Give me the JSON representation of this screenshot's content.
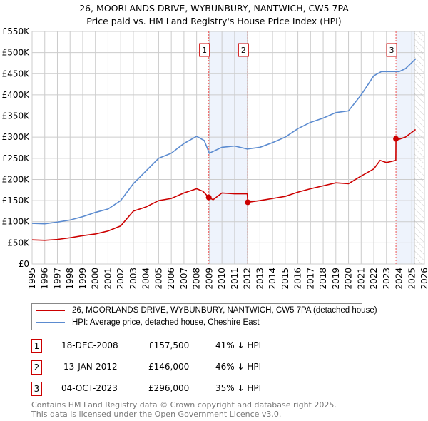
{
  "title": "26, MOORLANDS DRIVE, WYBUNBURY, NANTWICH, CW5 7PA",
  "subtitle": "Price paid vs. HM Land Registry's House Price Index (HPI)",
  "colors": {
    "property": "#cc0000",
    "hpi": "#5b8bd0",
    "shade": "#eef3fc"
  },
  "chart_data": {
    "type": "line",
    "xlim": [
      1995,
      2026
    ],
    "ylim": [
      0,
      550000
    ],
    "x_ticks": [
      "1995",
      "1996",
      "1997",
      "1998",
      "1999",
      "2000",
      "2001",
      "2002",
      "2003",
      "2004",
      "2005",
      "2006",
      "2007",
      "2008",
      "2009",
      "2010",
      "2011",
      "2012",
      "2013",
      "2014",
      "2015",
      "2016",
      "2017",
      "2018",
      "2019",
      "2020",
      "2021",
      "2022",
      "2023",
      "2024",
      "2025",
      "2026"
    ],
    "y_ticks": [
      "£0",
      "£50K",
      "£100K",
      "£150K",
      "£200K",
      "£250K",
      "£300K",
      "£350K",
      "£400K",
      "£450K",
      "£500K",
      "£550K"
    ],
    "series": [
      {
        "name": "26, MOORLANDS DRIVE, WYBUNBURY, NANTWICH, CW5 7PA (detached house)",
        "color": "#cc0000",
        "x": [
          1995,
          1996,
          1997,
          1998,
          1999,
          2000,
          2001,
          2002,
          2003,
          2004,
          2005,
          2006,
          2007,
          2008,
          2008.5,
          2008.96,
          2009.3,
          2010,
          2011,
          2012.0,
          2012.04,
          2013,
          2014,
          2015,
          2016,
          2017,
          2018,
          2019,
          2020,
          2021,
          2022,
          2022.5,
          2023,
          2023.74,
          2023.75,
          2024,
          2024.5,
          2025.3
        ],
        "y": [
          57000,
          56000,
          58000,
          62000,
          67000,
          71000,
          78000,
          90000,
          125000,
          135000,
          150000,
          155000,
          168000,
          178000,
          172000,
          157500,
          152000,
          168000,
          166000,
          166000,
          146000,
          150000,
          155000,
          160000,
          170000,
          178000,
          185000,
          192000,
          190000,
          208000,
          225000,
          245000,
          240000,
          245000,
          296000,
          295000,
          300000,
          318000
        ]
      },
      {
        "name": "HPI: Average price, detached house, Cheshire East",
        "color": "#5b8bd0",
        "x": [
          1995,
          1996,
          1997,
          1998,
          1999,
          2000,
          2001,
          2002,
          2003,
          2004,
          2005,
          2006,
          2007,
          2008,
          2008.6,
          2009,
          2010,
          2011,
          2012,
          2013,
          2014,
          2015,
          2016,
          2017,
          2018,
          2019,
          2020,
          2021,
          2022,
          2022.6,
          2023,
          2024,
          2024.5,
          2025.3
        ],
        "y": [
          96000,
          95000,
          99000,
          104000,
          112000,
          122000,
          130000,
          150000,
          190000,
          220000,
          250000,
          262000,
          285000,
          302000,
          292000,
          262000,
          276000,
          279000,
          272000,
          276000,
          287000,
          300000,
          320000,
          335000,
          345000,
          358000,
          362000,
          400000,
          445000,
          455000,
          455000,
          455000,
          462000,
          485000
        ]
      }
    ],
    "sales": [
      {
        "label": "1",
        "x": 2008.96,
        "y": 157500
      },
      {
        "label": "2",
        "x": 2012.04,
        "y": 146000
      },
      {
        "label": "3",
        "x": 2023.75,
        "y": 296000
      }
    ],
    "shaded": [
      [
        2008.96,
        2012.04
      ],
      [
        2023.75,
        2025.2
      ]
    ],
    "forecast_from": 2025.2,
    "grid": true,
    "legend": "bottom"
  },
  "legend": [
    "26, MOORLANDS DRIVE, WYBUNBURY, NANTWICH, CW5 7PA (detached house)",
    "HPI: Average price, detached house, Cheshire East"
  ],
  "transactions": [
    {
      "num": "1",
      "date": "18-DEC-2008",
      "price": "£157,500",
      "hpi": "41% ↓ HPI"
    },
    {
      "num": "2",
      "date": "13-JAN-2012",
      "price": "£146,000",
      "hpi": "46% ↓ HPI"
    },
    {
      "num": "3",
      "date": "04-OCT-2023",
      "price": "£296,000",
      "hpi": "35% ↓ HPI"
    }
  ],
  "footer": [
    "Contains HM Land Registry data © Crown copyright and database right 2025.",
    "This data is licensed under the Open Government Licence v3.0."
  ]
}
